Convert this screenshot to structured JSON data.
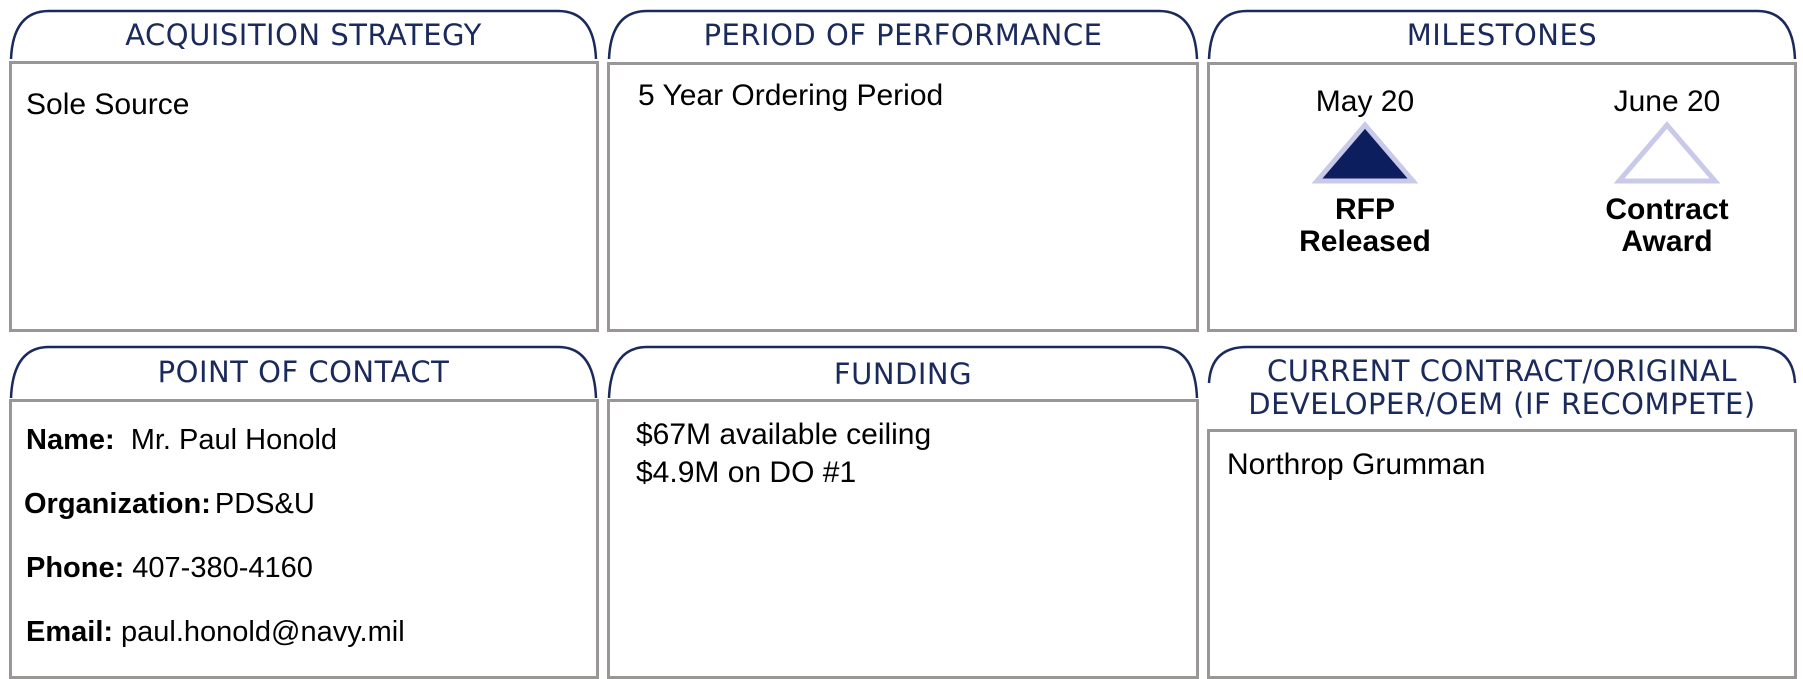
{
  "panels": [
    {
      "title": "ACQUISITION STRATEGY",
      "text": "Sole Source"
    },
    {
      "title": "PERIOD OF PERFORMANCE",
      "text": "5 Year Ordering Period"
    },
    {
      "title": "MILESTONES",
      "milestones": [
        {
          "date": "May 20",
          "label": "RFP Released"
        },
        {
          "date": "June 20",
          "label": "Contract Award"
        }
      ]
    },
    {
      "title": "POINT OF CONTACT",
      "fields": [
        {
          "label": "Name:",
          "value": "Mr. Paul Honold"
        },
        {
          "label": "Organization:",
          "value": "PDS&U"
        },
        {
          "label": "Phone:",
          "value": "407-380-4160"
        },
        {
          "label": "Email:",
          "value": "paul.honold@navy.mil"
        }
      ]
    },
    {
      "title": "FUNDING",
      "lines": [
        "$67M available ceiling",
        "$4.9M on DO #1"
      ]
    },
    {
      "title": "CURRENT CONTRACT/ORIGINAL DEVELOPER/OEM (IF RECOMPETE)",
      "text": "Northrop Grumman"
    }
  ]
}
